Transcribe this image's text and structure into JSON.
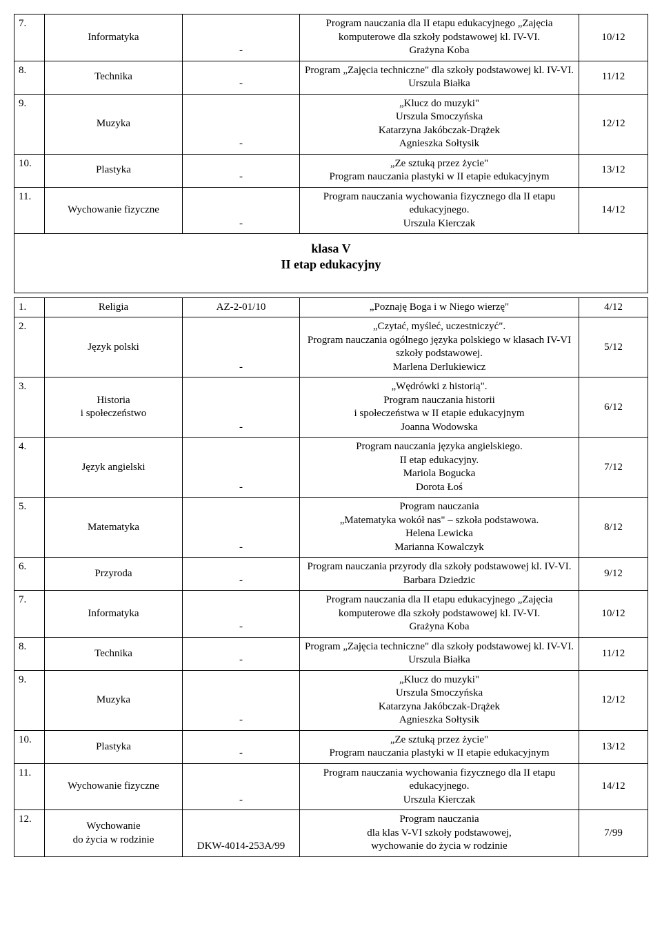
{
  "table1": {
    "rows": [
      {
        "num": "7.",
        "subject": "Informatyka",
        "code": "-",
        "desc": "Program nauczania dla II etapu edukacyjnego „Zajęcia komputerowe dla szkoły podstawowej kl. IV-VI.\nGrażyna Koba",
        "ref": "10/12"
      },
      {
        "num": "8.",
        "subject": "Technika",
        "code": "-",
        "desc": "Program „Zajęcia techniczne\" dla szkoły podstawowej kl. IV-VI.\nUrszula Białka",
        "ref": "11/12"
      },
      {
        "num": "9.",
        "subject": "Muzyka",
        "code": "-",
        "desc": "„Klucz do muzyki\"\nUrszula Smoczyńska\nKatarzyna Jakóbczak-Drążek\nAgnieszka Sołtysik",
        "ref": "12/12"
      },
      {
        "num": "10.",
        "subject": "Plastyka",
        "code": "-",
        "desc": "„Ze sztuką przez życie\"\nProgram nauczania plastyki w II etapie edukacyjnym",
        "ref": "13/12"
      },
      {
        "num": "11.",
        "subject": "Wychowanie fizyczne",
        "code": "-",
        "desc": "Program nauczania wychowania fizycznego dla II etapu edukacyjnego.\nUrszula Kierczak",
        "ref": "14/12"
      }
    ]
  },
  "section_header": "klasa V\nII etap edukacyjny",
  "table2": {
    "rows": [
      {
        "num": "1.",
        "subject": "Religia",
        "code": "AZ-2-01/10",
        "desc": "„Poznaję Boga i w Niego wierzę\"",
        "ref": "4/12"
      },
      {
        "num": "2.",
        "subject": "Język polski",
        "code": "-",
        "desc": "„Czytać, myśleć, uczestniczyć\".\nProgram nauczania ogólnego języka polskiego w klasach IV-VI szkoły podstawowej.\nMarlena Derlukiewicz",
        "ref": "5/12"
      },
      {
        "num": "3.",
        "subject": "Historia\ni społeczeństwo",
        "code": "-",
        "desc": "„Wędrówki z historią\".\nProgram nauczania historii\ni społeczeństwa w II etapie edukacyjnym\nJoanna Wodowska",
        "ref": "6/12"
      },
      {
        "num": "4.",
        "subject": "Język angielski",
        "code": "-",
        "desc": "Program nauczania języka angielskiego.\nII etap edukacyjny.\nMariola Bogucka\nDorota Łoś",
        "ref": "7/12"
      },
      {
        "num": "5.",
        "subject": "Matematyka",
        "code": "-",
        "desc": "Program nauczania\n„Matematyka wokół nas\" – szkoła podstawowa.\nHelena Lewicka\nMarianna Kowalczyk",
        "ref": "8/12"
      },
      {
        "num": "6.",
        "subject": "Przyroda",
        "code": "-",
        "desc": "Program nauczania przyrody dla szkoły podstawowej kl. IV-VI.\nBarbara Dziedzic",
        "ref": "9/12"
      },
      {
        "num": "7.",
        "subject": "Informatyka",
        "code": "-",
        "desc": "Program nauczania dla II etapu edukacyjnego „Zajęcia komputerowe dla szkoły podstawowej kl. IV-VI.\nGrażyna Koba",
        "ref": "10/12"
      },
      {
        "num": "8.",
        "subject": "Technika",
        "code": "-",
        "desc": "Program „Zajęcia techniczne\" dla szkoły podstawowej kl. IV-VI.\nUrszula Białka",
        "ref": "11/12"
      },
      {
        "num": "9.",
        "subject": "Muzyka",
        "code": "-",
        "desc": "„Klucz do muzyki\"\nUrszula Smoczyńska\nKatarzyna Jakóbczak-Drążek\nAgnieszka Sołtysik",
        "ref": "12/12"
      },
      {
        "num": "10.",
        "subject": "Plastyka",
        "code": "-",
        "desc": "„Ze sztuką przez życie\"\nProgram nauczania plastyki w II etapie edukacyjnym",
        "ref": "13/12"
      },
      {
        "num": "11.",
        "subject": "Wychowanie fizyczne",
        "code": "-",
        "desc": "Program nauczania wychowania fizycznego dla II etapu edukacyjnego.\nUrszula Kierczak",
        "ref": "14/12"
      },
      {
        "num": "12.",
        "subject": "Wychowanie\ndo życia w rodzinie",
        "code": "DKW-4014-253A/99",
        "desc": "Program nauczania\ndla klas V-VI szkoły podstawowej,\nwychowanie do życia w rodzinie",
        "ref": "7/99"
      }
    ]
  }
}
